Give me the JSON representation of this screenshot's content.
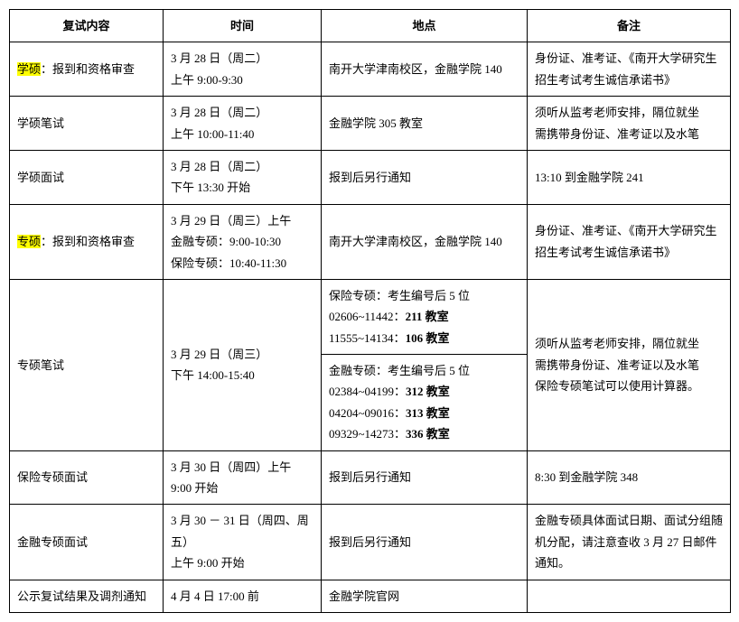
{
  "headers": [
    "复试内容",
    "时间",
    "地点",
    "备注"
  ],
  "rows": [
    {
      "col0_pre_hl": "学硕",
      "col0_post": "：报到和资格审查",
      "col1_line1": "3 月 28 日（周二）",
      "col1_line2": "上午 9:00-9:30",
      "col2": "南开大学津南校区，金融学院 140",
      "col3": "身份证、准考证、《南开大学研究生招生考试考生诚信承诺书》"
    },
    {
      "col0": "学硕笔试",
      "col1_line1": "3 月 28 日（周二）",
      "col1_line2": "上午 10:00-11:40",
      "col2": "金融学院 305 教室",
      "col3_line1": "须听从监考老师安排，隔位就坐",
      "col3_line2": "需携带身份证、准考证以及水笔"
    },
    {
      "col0": "学硕面试",
      "col1_line1": "3 月 28 日（周二）",
      "col1_line2": "下午 13:30 开始",
      "col2": "报到后另行通知",
      "col3": "13:10 到金融学院 241"
    },
    {
      "col0_pre_hl": "专硕",
      "col0_post": "：报到和资格审查",
      "col1_line1": "3 月 29 日（周三）上午",
      "col1_line2": "金融专硕：9:00-10:30",
      "col1_line3": "保险专硕：10:40-11:30",
      "col2": "南开大学津南校区，金融学院 140",
      "col3": "身份证、准考证、《南开大学研究生招生考试考生诚信承诺书》"
    },
    {
      "col0": "专硕笔试",
      "col1_line1": "3 月 29 日（周三）",
      "col1_line2": "下午 14:00-15:40",
      "col2a_l1": "保险专硕：考生编号后 5 位",
      "col2a_l2_pre": "02606~11442：",
      "col2a_l2_bold": "211 教室",
      "col2a_l3_pre": "11555~14134：",
      "col2a_l3_bold": "106 教室",
      "col2b_l1": "金融专硕：考生编号后 5 位",
      "col2b_l2_pre": "02384~04199：",
      "col2b_l2_bold": "312 教室",
      "col2b_l3_pre": "04204~09016：",
      "col2b_l3_bold": "313 教室",
      "col2b_l4_pre": "09329~14273：",
      "col2b_l4_bold": "336 教室",
      "col3_line1": "须听从监考老师安排，隔位就坐",
      "col3_line2": "需携带身份证、准考证以及水笔",
      "col3_line3": "保险专硕笔试可以使用计算器。"
    },
    {
      "col0": "保险专硕面试",
      "col1": "3 月 30 日（周四）上午 9:00 开始",
      "col2": "报到后另行通知",
      "col3": "8:30 到金融学院 348"
    },
    {
      "col0": "金融专硕面试",
      "col1_line1": "3 月 30 － 31 日（周四、周五）",
      "col1_line2": "上午 9:00 开始",
      "col2": "报到后另行通知",
      "col3": "金融专硕具体面试日期、面试分组随机分配，请注意查收 3 月 27 日邮件通知。"
    },
    {
      "col0": "公示复试结果及调剂通知",
      "col1": "4 月 4 日 17:00 前",
      "col2": "金融学院官网",
      "col3": ""
    }
  ]
}
